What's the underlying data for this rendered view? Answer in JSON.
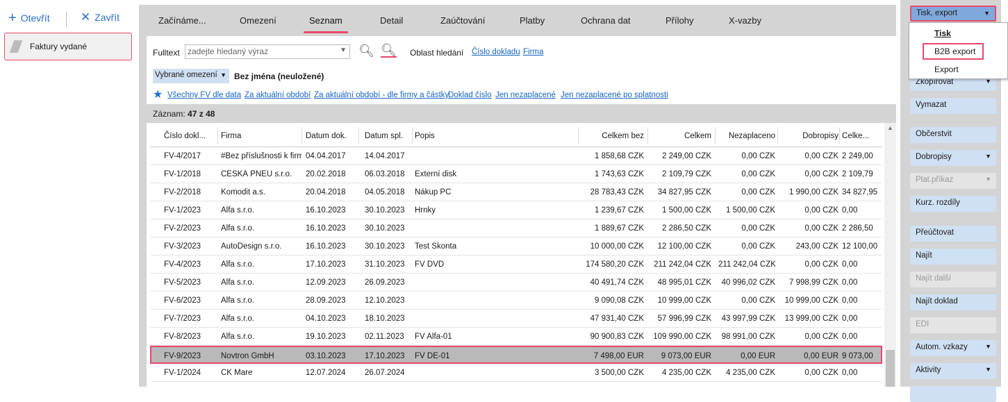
{
  "toolbar": {
    "open": "Otevřít",
    "close": "Zavřít",
    "open_icon": "plus-icon",
    "close_icon": "x-icon"
  },
  "left": {
    "selected": "Faktury vydané"
  },
  "tabs": [
    "Začínáme...",
    "Omezení",
    "Seznam",
    "Detail",
    "Zaúčtování",
    "Platby",
    "Ochrana dat",
    "Přílohy",
    "X-vazby"
  ],
  "active_tab": "Seznam",
  "filter": {
    "fulltext_label": "Fulltext",
    "placeholder": "zadejte hledaný výraz",
    "area_label": "Oblast hledání",
    "area_links": [
      "Číslo dokladu",
      "Firma"
    ],
    "restriction_button": "Vybrané omezení",
    "restriction_value": "Bez jména (neuložené)",
    "quick_links": [
      "Všechny FV dle data",
      "Za aktuální období",
      "Za aktuální období - dle firmy a částky",
      "Doklad číslo",
      "Jen nezaplacené",
      "Jen nezaplacené po splatnosti"
    ]
  },
  "records": {
    "label": "Záznam:",
    "current": "47",
    "of": "z",
    "total": "48"
  },
  "table": {
    "columns": [
      "Číslo dokl...",
      "Firma",
      "Datum dok.",
      "Datum spl.",
      "Popis",
      "Celkem bez",
      "Celkem",
      "Nezaplaceno",
      "Dobropisy",
      "Celke..."
    ],
    "rows": [
      [
        "FV-4/2017",
        "#Bez příslušnosti k firmě",
        "04.04.2017",
        "14.04.2017",
        "",
        "1 858,68 CZK",
        "2 249,00 CZK",
        "0,00 CZK",
        "0,00 CZK",
        "2 249,00"
      ],
      [
        "FV-1/2018",
        "ČESKÁ PNEU s.r.o.",
        "20.02.2018",
        "06.03.2018",
        "Externí disk",
        "1 743,63 CZK",
        "2 109,79 CZK",
        "0,00 CZK",
        "0,00 CZK",
        "2 109,79"
      ],
      [
        "FV-2/2018",
        "Komodit a.s.",
        "20.04.2018",
        "04.05.2018",
        "Nákup PC",
        "28 783,43 CZK",
        "34 827,95 CZK",
        "0,00 CZK",
        "1 990,00 CZK",
        "34 827,95"
      ],
      [
        "FV-1/2023",
        "Alfa s.r.o.",
        "16.10.2023",
        "30.10.2023",
        "Hrnky",
        "1 239,67 CZK",
        "1 500,00 CZK",
        "1 500,00 CZK",
        "0,00 CZK",
        "0,00"
      ],
      [
        "FV-2/2023",
        "Alfa s.r.o.",
        "16.10.2023",
        "30.10.2023",
        "",
        "1 889,67 CZK",
        "2 286,50 CZK",
        "0,00 CZK",
        "0,00 CZK",
        "2 286,50"
      ],
      [
        "FV-3/2023",
        "AutoDesign s.r.o.",
        "16.10.2023",
        "30.10.2023",
        "Test Skonta",
        "10 000,00 CZK",
        "12 100,00 CZK",
        "0,00 CZK",
        "243,00 CZK",
        "12 100,00"
      ],
      [
        "FV-4/2023",
        "Alfa s.r.o.",
        "17.10.2023",
        "31.10.2023",
        "FV DVD",
        "174 580,20 CZK",
        "211 242,04 CZK",
        "211 242,04 CZK",
        "0,00 CZK",
        "0,00"
      ],
      [
        "FV-5/2023",
        "Alfa s.r.o.",
        "12.09.2023",
        "26.09.2023",
        "",
        "40 491,74 CZK",
        "48 995,01 CZK",
        "40 996,02 CZK",
        "7 998,99 CZK",
        "0,00"
      ],
      [
        "FV-6/2023",
        "Alfa s.r.o.",
        "28.09.2023",
        "12.10.2023",
        "",
        "9 090,08 CZK",
        "10 999,00 CZK",
        "0,00 CZK",
        "10 999,00 CZK",
        "0,00"
      ],
      [
        "FV-7/2023",
        "Alfa s.r.o.",
        "04.10.2023",
        "18.10.2023",
        "",
        "47 931,40 CZK",
        "57 996,99 CZK",
        "43 997,99 CZK",
        "13 999,00 CZK",
        "0,00"
      ],
      [
        "FV-8/2023",
        "Alfa s.r.o.",
        "19.10.2023",
        "02.11.2023",
        "FV Alfa-01",
        "90 900,83 CZK",
        "109 990,00 CZK",
        "98 991,00 CZK",
        "0,00 CZK",
        "0,00"
      ],
      [
        "FV-9/2023",
        "Novtron GmbH",
        "03.10.2023",
        "17.10.2023",
        "FV DE-01",
        "7 498,00 EUR",
        "9 073,00 EUR",
        "0,00 EUR",
        "0,00 EUR",
        "9 073,00"
      ],
      [
        "FV-1/2024",
        "CK Mare",
        "12.07.2024",
        "26.07.2024",
        "",
        "3 500,00 CZK",
        "4 235,00 CZK",
        "4 235,00 CZK",
        "0,00 CZK",
        "0,00"
      ]
    ],
    "selected_row": 11
  },
  "actions": {
    "primary": "Tisk, export",
    "menu": [
      "Tisk",
      "B2B export",
      "Export"
    ],
    "buttons": [
      {
        "label": "Zkopírovat",
        "dropdown": true,
        "disabled": false
      },
      {
        "label": "Vymazat",
        "dropdown": false,
        "disabled": false
      },
      {
        "label": "Občerstvit",
        "dropdown": false,
        "disabled": false
      },
      {
        "label": "Dobropisy",
        "dropdown": true,
        "disabled": false
      },
      {
        "label": "Plat.příkaz",
        "dropdown": true,
        "disabled": true
      },
      {
        "label": "Kurz. rozdíly",
        "dropdown": false,
        "disabled": false
      },
      {
        "label": "Přeúčtovat",
        "dropdown": false,
        "disabled": false
      },
      {
        "label": "Najít",
        "dropdown": false,
        "disabled": false
      },
      {
        "label": "Najít další",
        "dropdown": false,
        "disabled": true
      },
      {
        "label": "Najít doklad",
        "dropdown": false,
        "disabled": false
      },
      {
        "label": "EDI",
        "dropdown": false,
        "disabled": true
      },
      {
        "label": "Autom. vzkazy",
        "dropdown": true,
        "disabled": false
      },
      {
        "label": "Aktivity",
        "dropdown": true,
        "disabled": false
      }
    ]
  },
  "colors": {
    "accent": "#e9476b",
    "link": "#1565c0",
    "button": "#cfe0f3",
    "primary_button": "#7fa9dc"
  }
}
